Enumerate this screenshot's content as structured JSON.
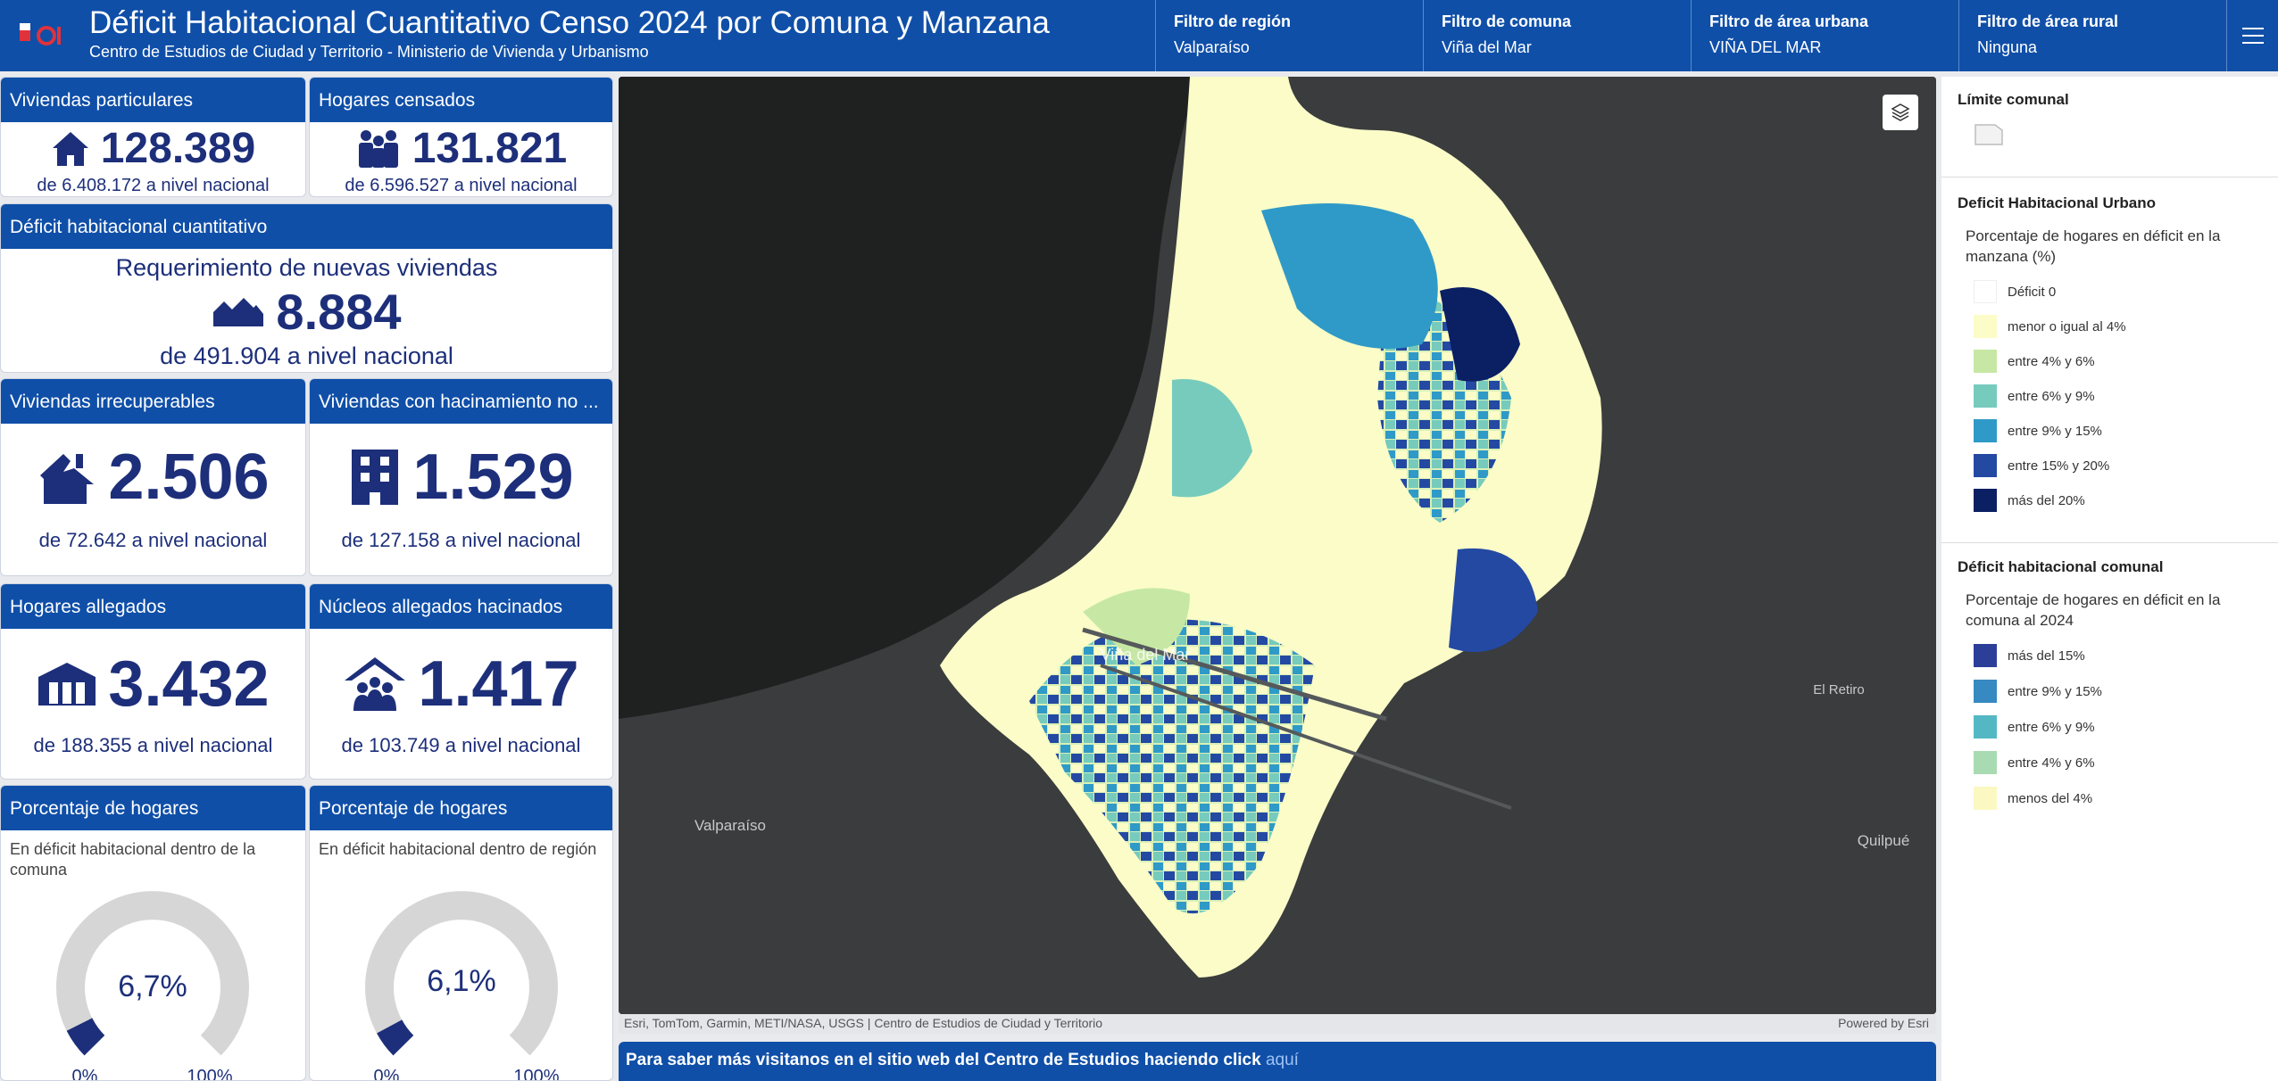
{
  "header": {
    "title": "Déficit Habitacional Cuantitativo Censo 2024 por Comuna y Manzana",
    "subtitle": "Centro de Estudios de Ciudad y Territorio - Ministerio de Vivienda y Urbanismo",
    "filters": [
      {
        "label": "Filtro de región",
        "value": "Valparaíso"
      },
      {
        "label": "Filtro de comuna",
        "value": "Viña del Mar"
      },
      {
        "label": "Filtro de área urbana",
        "value": "VIÑA DEL MAR"
      },
      {
        "label": "Filtro de área rural",
        "value": "Ninguna"
      }
    ],
    "menu_icon": "hamburger-icon"
  },
  "cards": {
    "viviendas": {
      "title": "Viviendas particulares",
      "value": "128.389",
      "sub": "de 6.408.172 a nivel nacional",
      "icon": "house-icon"
    },
    "hogares": {
      "title": "Hogares censados",
      "value": "131.821",
      "sub": "de 6.596.527 a nivel nacional",
      "icon": "family-icon"
    },
    "deficit": {
      "title": "Déficit habitacional cuantitativo",
      "line1": "Requerimiento de nuevas viviendas",
      "value": "8.884",
      "sub": "de 491.904 a nivel nacional",
      "icon": "houses-icon"
    },
    "irrecuperables": {
      "title": "Viviendas irrecuperables",
      "value": "2.506",
      "sub": "de 72.642 a nivel nacional",
      "icon": "broken-house-icon"
    },
    "hacinamiento": {
      "title": "Viviendas con hacinamiento no ...",
      "value": "1.529",
      "sub": "de 127.158 a nivel nacional",
      "icon": "building-icon"
    },
    "allegados": {
      "title": "Hogares allegados",
      "value": "3.432",
      "sub": "de 188.355 a nivel nacional",
      "icon": "shelter-icon"
    },
    "nucleos": {
      "title": "Núcleos allegados hacinados",
      "value": "1.417",
      "sub": "de 103.749 a nivel nacional",
      "icon": "crowd-house-icon"
    }
  },
  "gauges": [
    {
      "title": "Porcentaje de hogares",
      "desc": "En déficit habitacional dentro de la comuna",
      "value_label": "6,7%",
      "value": 6.7,
      "min_label": "0%",
      "max_label": "100%"
    },
    {
      "title": "Porcentaje de hogares",
      "desc": "En déficit habitacional dentro de región",
      "value_label": "6,1%",
      "value": 6.1,
      "min_label": "0%",
      "max_label": "100%"
    }
  ],
  "map": {
    "labels": {
      "vina": "Viña del Mar",
      "valparaiso": "Valparaíso",
      "retiro": "El Retiro",
      "quilpue": "Quilpué"
    },
    "attribution": "Esri, TomTom, Garmin, METI/NASA, USGS | Centro de Estudios de Ciudad y Territorio",
    "powered": "Powered by Esri",
    "layers_icon": "layers-icon"
  },
  "banner": {
    "text": "Para saber más visitanos en el sitio web del Centro de Estudios haciendo click ",
    "link": "aquí"
  },
  "legend": {
    "limite": "Límite comunal",
    "urbano": {
      "title": "Deficit Habitacional Urbano",
      "desc": "Porcentaje de hogares en déficit en la manzana (%)",
      "items": [
        {
          "label": "Déficit 0",
          "color": "#ffffff"
        },
        {
          "label": "menor o igual al 4%",
          "color": "#fbfcc8"
        },
        {
          "label": "entre 4% y 6%",
          "color": "#c6e8a4"
        },
        {
          "label": "entre 6% y 9%",
          "color": "#76cbbd"
        },
        {
          "label": "entre 9% y 15%",
          "color": "#2f9ac7"
        },
        {
          "label": "entre 15% y 20%",
          "color": "#2449a3"
        },
        {
          "label": "más del 20%",
          "color": "#0b1f63"
        }
      ]
    },
    "comunal": {
      "title": "Déficit habitacional comunal",
      "desc": "Porcentaje de hogares en déficit en la comuna al 2024",
      "items": [
        {
          "label": "más del 15%",
          "color": "#2b3f99"
        },
        {
          "label": "entre 9% y 15%",
          "color": "#3789c2"
        },
        {
          "label": "entre 6% y 9%",
          "color": "#54b8c4"
        },
        {
          "label": "entre 4% y 6%",
          "color": "#a9dbb3"
        },
        {
          "label": "menos del 4%",
          "color": "#fbf8c2"
        }
      ]
    }
  }
}
